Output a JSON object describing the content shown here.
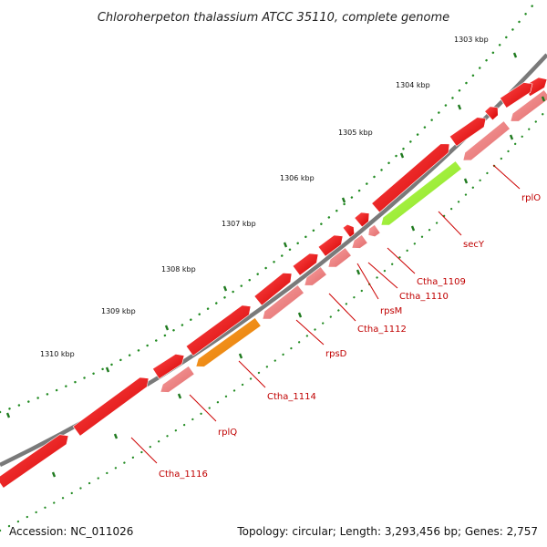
{
  "title": "Chloroherpeton thalassium ATCC 35110, complete genome",
  "footer": {
    "accession": "Accession: NC_011026",
    "summary": "Topology: circular; Length: 3,293,456 bp; Genes: 2,757"
  },
  "ruler_ticks": [
    {
      "label": "1303 kbp"
    },
    {
      "label": "1304 kbp"
    },
    {
      "label": "1305 kbp"
    },
    {
      "label": "1306 kbp"
    },
    {
      "label": "1307 kbp"
    },
    {
      "label": "1308 kbp"
    },
    {
      "label": "1309 kbp"
    },
    {
      "label": "1310 kbp"
    }
  ],
  "gene_labels": [
    "rplO",
    "secY",
    "Ctha_1109",
    "Ctha_1110",
    "rpsM",
    "Ctha_1112",
    "rpsD",
    "Ctha_1114",
    "rplQ",
    "Ctha_1116"
  ],
  "colors": {
    "backbone": "#7a7a7a",
    "gene_red": "#ff0000",
    "gene_pink": "#f08080",
    "gene_green": "#99ee33",
    "gene_orange": "#ff8c00",
    "tick_green": "#228b22",
    "label_red": "#c00000"
  }
}
